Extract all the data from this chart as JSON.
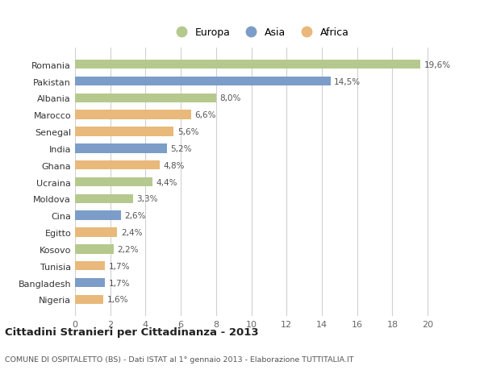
{
  "countries": [
    "Romania",
    "Pakistan",
    "Albania",
    "Marocco",
    "Senegal",
    "India",
    "Ghana",
    "Ucraina",
    "Moldova",
    "Cina",
    "Egitto",
    "Kosovo",
    "Tunisia",
    "Bangladesh",
    "Nigeria"
  ],
  "values": [
    19.6,
    14.5,
    8.0,
    6.6,
    5.6,
    5.2,
    4.8,
    4.4,
    3.3,
    2.6,
    2.4,
    2.2,
    1.7,
    1.7,
    1.6
  ],
  "labels": [
    "19,6%",
    "14,5%",
    "8,0%",
    "6,6%",
    "5,6%",
    "5,2%",
    "4,8%",
    "4,4%",
    "3,3%",
    "2,6%",
    "2,4%",
    "2,2%",
    "1,7%",
    "1,7%",
    "1,6%"
  ],
  "continents": [
    "Europa",
    "Asia",
    "Europa",
    "Africa",
    "Africa",
    "Asia",
    "Africa",
    "Europa",
    "Europa",
    "Asia",
    "Africa",
    "Europa",
    "Africa",
    "Asia",
    "Africa"
  ],
  "colors": {
    "Europa": "#b5c98e",
    "Asia": "#7b9dc7",
    "Africa": "#e8b97a"
  },
  "xlim": [
    0,
    21
  ],
  "xticks": [
    0,
    2,
    4,
    6,
    8,
    10,
    12,
    14,
    16,
    18,
    20
  ],
  "title": "Cittadini Stranieri per Cittadinanza - 2013",
  "subtitle": "COMUNE DI OSPITALETTO (BS) - Dati ISTAT al 1° gennaio 2013 - Elaborazione TUTTITALIA.IT",
  "bg_color": "#ffffff",
  "grid_color": "#d0d0d0",
  "bar_height": 0.55
}
